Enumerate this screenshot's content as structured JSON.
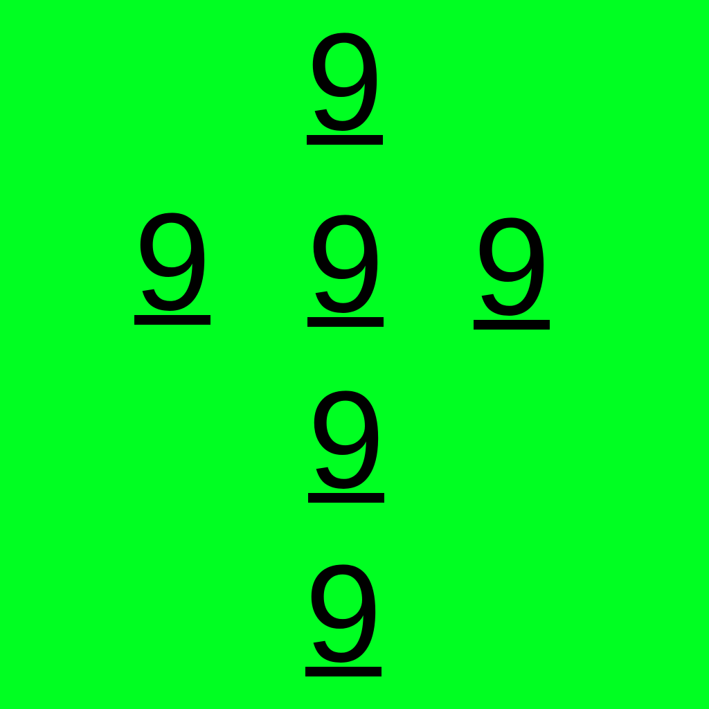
{
  "background_color": "#00ff22",
  "text_color": "#000000",
  "digits": [
    {
      "label": "9",
      "underlined": true
    },
    {
      "label": "9",
      "underlined": true
    },
    {
      "label": "9",
      "underlined": true
    },
    {
      "label": "9",
      "underlined": true
    },
    {
      "label": "9",
      "underlined": true
    },
    {
      "label": "9",
      "underlined": true
    }
  ]
}
